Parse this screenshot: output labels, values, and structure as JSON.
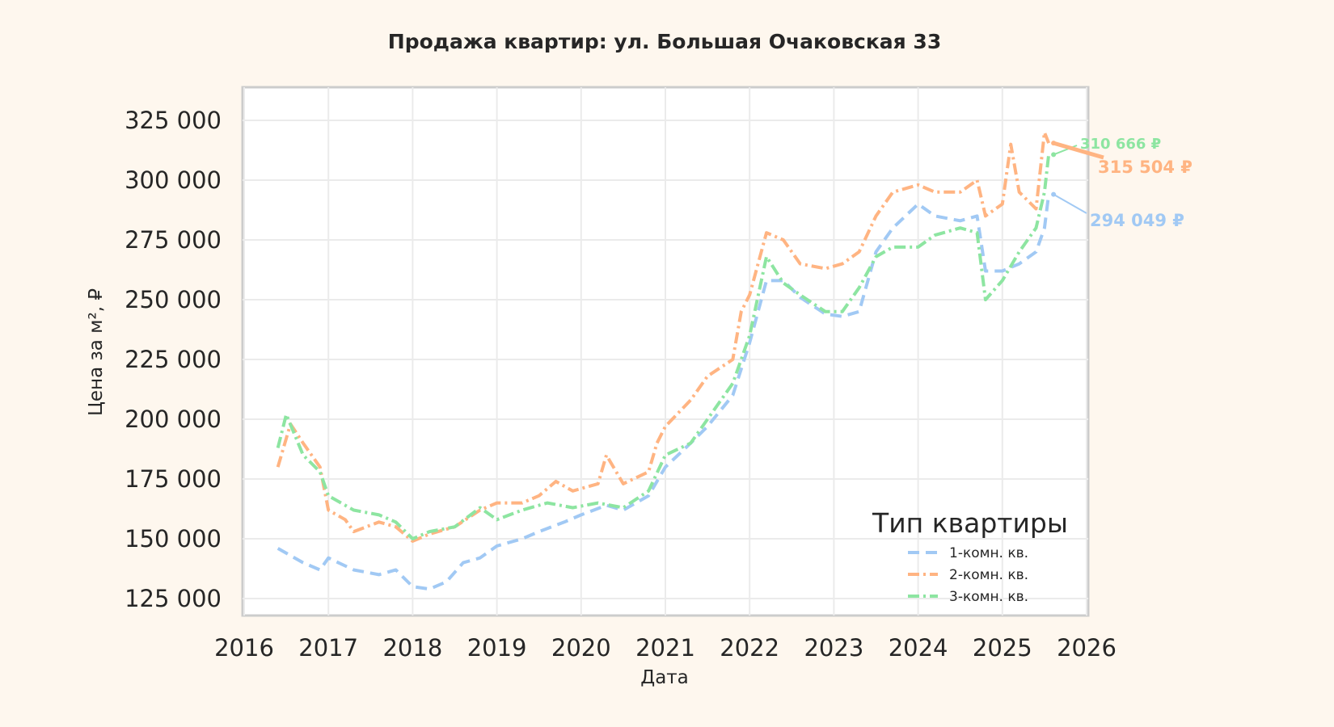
{
  "chart_data": {
    "type": "line",
    "title": "Продажа квартир: ул. Большая Очаковская 33",
    "xlabel": "Дата",
    "ylabel": "Цена за м², ₽",
    "xlim": [
      2016,
      2026
    ],
    "ylim": [
      118000,
      333000
    ],
    "x_ticks": [
      2016,
      2017,
      2018,
      2019,
      2020,
      2021,
      2022,
      2023,
      2024,
      2025,
      2026
    ],
    "x_tick_labels": [
      "2016",
      "2017",
      "2018",
      "2019",
      "2020",
      "2021",
      "2022",
      "2023",
      "2024",
      "2025",
      "2026"
    ],
    "y_ticks": [
      125000,
      150000,
      175000,
      200000,
      225000,
      250000,
      275000,
      300000,
      325000
    ],
    "y_tick_labels": [
      "125 000",
      "150 000",
      "175 000",
      "200 000",
      "225 000",
      "250 000",
      "275 000",
      "300 000",
      "325 000"
    ],
    "grid": true,
    "legend": {
      "title": "Тип квартиры",
      "placement": "bottom-right"
    },
    "series": [
      {
        "name": "1-комн. кв.",
        "color": "#a1c9f4",
        "dash": "dashed",
        "x": [
          2016.4,
          2016.7,
          2016.9,
          2017.0,
          2017.3,
          2017.6,
          2017.8,
          2018.0,
          2018.2,
          2018.4,
          2018.6,
          2018.8,
          2019.0,
          2019.3,
          2019.5,
          2019.8,
          2020.0,
          2020.3,
          2020.5,
          2020.8,
          2021.0,
          2021.3,
          2021.5,
          2021.8,
          2022.0,
          2022.2,
          2022.4,
          2022.6,
          2022.9,
          2023.1,
          2023.3,
          2023.5,
          2023.7,
          2024.0,
          2024.2,
          2024.5,
          2024.7,
          2024.8,
          2025.0,
          2025.2,
          2025.4,
          2025.5,
          2025.55
        ],
        "y": [
          146000,
          140000,
          137000,
          142000,
          137000,
          135000,
          137000,
          130000,
          129000,
          132000,
          140000,
          142000,
          147000,
          150000,
          153000,
          157000,
          160000,
          164000,
          162000,
          168000,
          180000,
          190000,
          197000,
          210000,
          232000,
          258000,
          258000,
          251000,
          244000,
          243000,
          245000,
          270000,
          280000,
          290000,
          285000,
          283000,
          285000,
          262000,
          262000,
          265000,
          270000,
          280000,
          294049
        ]
      },
      {
        "name": "2-комн. кв.",
        "color": "#ffb482",
        "dash": "dashdot",
        "x": [
          2016.4,
          2016.55,
          2016.7,
          2016.9,
          2017.0,
          2017.2,
          2017.3,
          2017.6,
          2017.8,
          2018.0,
          2018.2,
          2018.5,
          2018.8,
          2019.0,
          2019.3,
          2019.5,
          2019.7,
          2019.9,
          2020.2,
          2020.3,
          2020.5,
          2020.8,
          2020.9,
          2021.0,
          2021.3,
          2021.5,
          2021.8,
          2021.9,
          2022.0,
          2022.2,
          2022.4,
          2022.6,
          2022.9,
          2023.1,
          2023.3,
          2023.5,
          2023.7,
          2024.0,
          2024.2,
          2024.5,
          2024.7,
          2024.8,
          2025.0,
          2025.1,
          2025.2,
          2025.4,
          2025.5,
          2025.55
        ],
        "y": [
          180000,
          198000,
          190000,
          180000,
          162000,
          158000,
          153000,
          157000,
          155000,
          149000,
          152000,
          155000,
          162000,
          165000,
          165000,
          168000,
          174000,
          170000,
          173000,
          185000,
          173000,
          178000,
          190000,
          197000,
          208000,
          218000,
          225000,
          245000,
          252000,
          278000,
          275000,
          265000,
          263000,
          265000,
          270000,
          285000,
          295000,
          298000,
          295000,
          295000,
          300000,
          285000,
          290000,
          315000,
          295000,
          288000,
          320000,
          315504
        ]
      },
      {
        "name": "3-комн. кв.",
        "color": "#8de5a1",
        "dash": "dashdot",
        "x": [
          2016.4,
          2016.5,
          2016.7,
          2016.9,
          2017.0,
          2017.3,
          2017.6,
          2017.8,
          2018.0,
          2018.2,
          2018.5,
          2018.8,
          2019.0,
          2019.3,
          2019.6,
          2019.9,
          2020.2,
          2020.5,
          2020.8,
          2021.0,
          2021.3,
          2021.5,
          2021.8,
          2022.0,
          2022.2,
          2022.4,
          2022.6,
          2022.9,
          2023.1,
          2023.3,
          2023.5,
          2023.7,
          2024.0,
          2024.2,
          2024.5,
          2024.7,
          2024.8,
          2025.0,
          2025.2,
          2025.4,
          2025.5,
          2025.55
        ],
        "y": [
          188000,
          202000,
          185000,
          178000,
          168000,
          162000,
          160000,
          157000,
          150000,
          153000,
          155000,
          163000,
          158000,
          162000,
          165000,
          163000,
          165000,
          163000,
          170000,
          185000,
          190000,
          200000,
          215000,
          235000,
          268000,
          257000,
          252000,
          245000,
          245000,
          255000,
          268000,
          272000,
          272000,
          277000,
          280000,
          278000,
          250000,
          258000,
          270000,
          280000,
          295000,
          310666
        ]
      }
    ],
    "annotations": [
      {
        "series": "3-комн. кв.",
        "text": "310 666 ₽",
        "x": 2025.55,
        "y": 310666
      },
      {
        "series": "2-комн. кв.",
        "text": "315 504 ₽",
        "x": 2025.55,
        "y": 315504
      },
      {
        "series": "1-комн. кв.",
        "text": "294 049 ₽",
        "x": 2025.55,
        "y": 294049
      }
    ]
  }
}
